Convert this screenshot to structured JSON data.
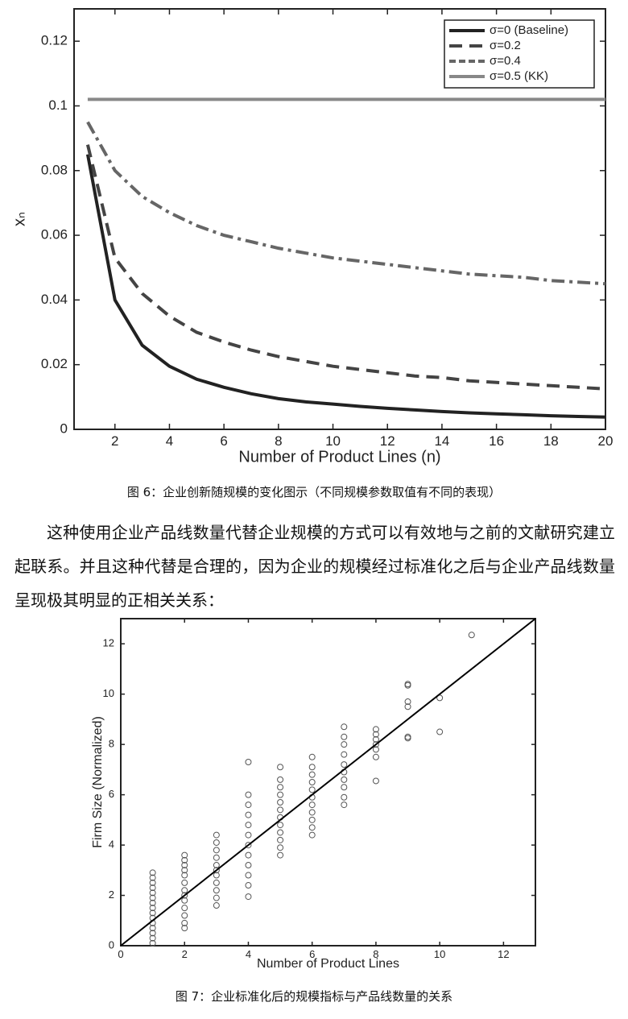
{
  "chart_data": [
    {
      "type": "line",
      "xlabel": "Number of Product Lines (n)",
      "ylabel": "xₙ",
      "x": [
        1,
        2,
        3,
        4,
        5,
        6,
        7,
        8,
        9,
        10,
        11,
        12,
        13,
        14,
        15,
        16,
        17,
        18,
        19,
        20
      ],
      "series": [
        {
          "name": "σ=0 (Baseline)",
          "color": "#222222",
          "linestyle": "solid",
          "values": [
            0.085,
            0.04,
            0.026,
            0.0195,
            0.0155,
            0.013,
            0.011,
            0.0095,
            0.0085,
            0.0078,
            0.0071,
            0.0065,
            0.006,
            0.0055,
            0.0051,
            0.0048,
            0.0045,
            0.0042,
            0.004,
            0.0038
          ]
        },
        {
          "name": "σ=0.2",
          "color": "#444444",
          "linestyle": "dashed",
          "values": [
            0.088,
            0.053,
            0.042,
            0.035,
            0.03,
            0.027,
            0.0245,
            0.0225,
            0.021,
            0.0195,
            0.0185,
            0.0175,
            0.0165,
            0.016,
            0.015,
            0.0145,
            0.014,
            0.0135,
            0.013,
            0.0125
          ]
        },
        {
          "name": "σ=0.4",
          "color": "#666666",
          "linestyle": "dashdot",
          "values": [
            0.095,
            0.08,
            0.072,
            0.067,
            0.063,
            0.06,
            0.058,
            0.056,
            0.0545,
            0.053,
            0.052,
            0.051,
            0.05,
            0.049,
            0.048,
            0.0475,
            0.047,
            0.046,
            0.0455,
            0.045
          ]
        },
        {
          "name": "σ=0.5 (KK)",
          "color": "#888888",
          "linestyle": "solid",
          "values": [
            0.102,
            0.102,
            0.102,
            0.102,
            0.102,
            0.102,
            0.102,
            0.102,
            0.102,
            0.102,
            0.102,
            0.102,
            0.102,
            0.102,
            0.102,
            0.102,
            0.102,
            0.102,
            0.102,
            0.102
          ]
        }
      ],
      "xlim": [
        0.5,
        20
      ],
      "ylim": [
        0,
        0.13
      ],
      "xticks": [
        2,
        4,
        6,
        8,
        10,
        12,
        14,
        16,
        18,
        20
      ],
      "yticks": [
        0,
        0.02,
        0.04,
        0.06,
        0.08,
        0.1,
        0.12
      ],
      "grid": false,
      "legend": "upper-right"
    },
    {
      "type": "scatter",
      "xlabel": "Number of Product Lines",
      "ylabel": "Firm Size (Normalized)",
      "series": [
        {
          "color": "#555555",
          "marker": "circle",
          "x": [
            1,
            1,
            1,
            1,
            1,
            1,
            1,
            1,
            1,
            1,
            1,
            1,
            1,
            1,
            1,
            2,
            2,
            2,
            2,
            2,
            2,
            2,
            2,
            2,
            2,
            2,
            2,
            2,
            3,
            3,
            3,
            3,
            3,
            3,
            3,
            3,
            3,
            3,
            3,
            4,
            4,
            4,
            4,
            4,
            4,
            4,
            4,
            4,
            4,
            4,
            4,
            5,
            5,
            5,
            5,
            5,
            5,
            5,
            5,
            5,
            5,
            5,
            5,
            6,
            6,
            6,
            6,
            6,
            6,
            6,
            6,
            6,
            6,
            6,
            7,
            7,
            7,
            7,
            7,
            7,
            7,
            7,
            7,
            7,
            8,
            8,
            8,
            8,
            8,
            8,
            8,
            9,
            9,
            9,
            9,
            9,
            9,
            10,
            10,
            11
          ],
          "values": [
            0.1,
            0.3,
            0.5,
            0.7,
            0.9,
            1.1,
            1.3,
            1.5,
            1.7,
            1.9,
            2.1,
            2.3,
            2.5,
            2.7,
            2.9,
            0.7,
            0.9,
            1.2,
            1.5,
            1.8,
            2.0,
            2.2,
            2.5,
            2.8,
            3.0,
            3.2,
            3.4,
            3.6,
            1.6,
            1.9,
            2.2,
            2.5,
            2.8,
            3.0,
            3.2,
            3.5,
            3.8,
            4.1,
            4.4,
            1.95,
            2.4,
            2.8,
            3.2,
            3.6,
            4.0,
            4.4,
            4.8,
            5.2,
            5.6,
            6.0,
            7.3,
            3.6,
            3.9,
            4.2,
            4.5,
            4.8,
            5.1,
            5.4,
            5.7,
            6.0,
            6.3,
            6.6,
            7.1,
            4.4,
            4.7,
            5.0,
            5.3,
            5.6,
            5.9,
            6.2,
            6.5,
            6.8,
            7.1,
            7.5,
            5.6,
            5.9,
            6.3,
            6.6,
            6.9,
            7.2,
            7.6,
            8.0,
            8.3,
            8.7,
            6.55,
            7.5,
            7.8,
            8.0,
            8.2,
            8.4,
            8.6,
            8.25,
            8.3,
            9.5,
            9.7,
            10.35,
            10.4,
            8.5,
            9.85,
            12.35
          ]
        },
        {
          "color": "#000000",
          "marker": "line",
          "x": [
            0,
            13
          ],
          "values": [
            0,
            13
          ]
        }
      ],
      "xlim": [
        0,
        13
      ],
      "ylim": [
        0,
        13
      ],
      "xticks": [
        0,
        2,
        4,
        6,
        8,
        10,
        12
      ],
      "yticks": [
        0,
        2,
        4,
        6,
        8,
        10,
        12
      ],
      "grid": false
    }
  ],
  "figure_captions": [
    "图 6：企业创新随规模的变化图示（不同规模参数取值有不同的表现）",
    "图 7：企业标准化后的规模指标与产品线数量的关系"
  ],
  "paragraph": "这种使用企业产品线数量代替企业规模的方式可以有效地与之前的文献研究建立起联系。并且这种代替是合理的，因为企业的规模经过标准化之后与企业产品线数量呈现极其明显的正相关关系："
}
